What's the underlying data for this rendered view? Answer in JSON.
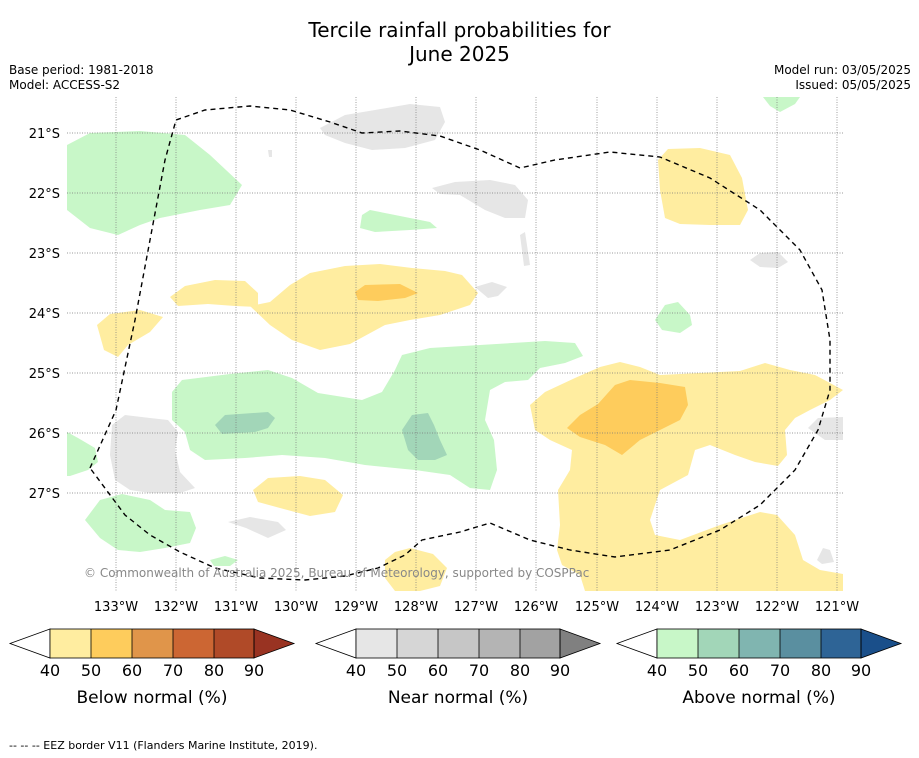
{
  "title_line1": "Tercile rainfall probabilities for",
  "title_line2": "June 2025",
  "base_period": "Base period: 1981-2018",
  "model": "Model: ACCESS-S2",
  "model_run": "Model run: 03/05/2025",
  "issued": "Issued: 05/05/2025",
  "copyright": "© Commonwealth of Australia 2025, Bureau of Meteorology, supported by COSPPac",
  "footnote": "--  --  -- EEZ border V11 (Flanders Marine Institute, 2019).",
  "lat_labels": [
    "21°S",
    "22°S",
    "23°S",
    "24°S",
    "25°S",
    "26°S",
    "27°S"
  ],
  "lon_labels": [
    "133°W",
    "132°W",
    "131°W",
    "130°W",
    "129°W",
    "128°W",
    "127°W",
    "126°W",
    "125°W",
    "124°W",
    "123°W",
    "122°W",
    "121°W"
  ],
  "colorbars": [
    {
      "label": "Below normal (%)",
      "ticks": [
        "40",
        "50",
        "60",
        "70",
        "80",
        "90"
      ],
      "colors": [
        "#ffffff",
        "#ffeda0",
        "#fecc5c",
        "#e0954a",
        "#cc6633",
        "#b04a28",
        "#993322"
      ]
    },
    {
      "label": "Near normal (%)",
      "ticks": [
        "40",
        "50",
        "60",
        "70",
        "80",
        "90"
      ],
      "colors": [
        "#ffffff",
        "#e6e6e6",
        "#d6d6d6",
        "#c6c6c6",
        "#b4b4b4",
        "#a2a2a2",
        "#808080"
      ]
    },
    {
      "label": "Above normal (%)",
      "ticks": [
        "40",
        "50",
        "60",
        "70",
        "80",
        "90"
      ],
      "colors": [
        "#ffffff",
        "#c8f7c8",
        "#a2d6b8",
        "#80b5b0",
        "#5a8fa0",
        "#2e6496",
        "#1a4f8a"
      ]
    }
  ]
}
